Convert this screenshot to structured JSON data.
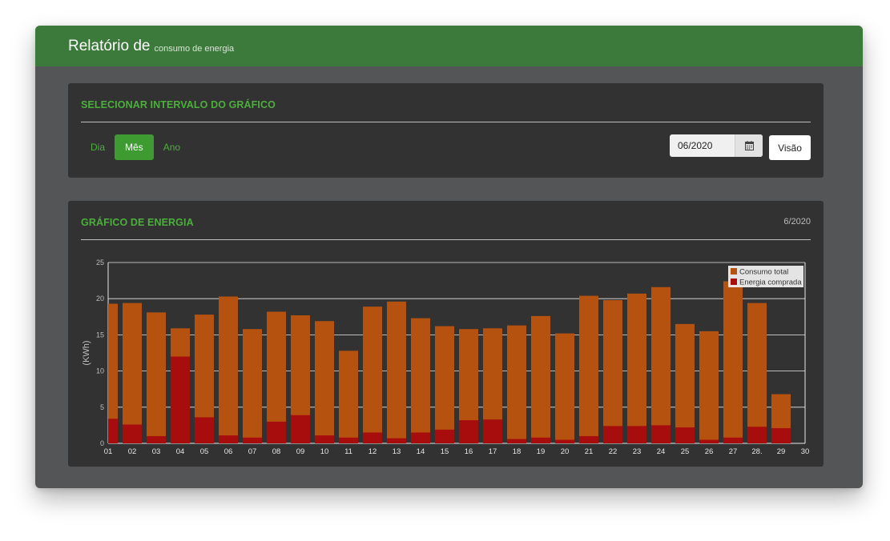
{
  "header": {
    "title": "Relatório de",
    "subtitle": "consumo de energia"
  },
  "range_panel": {
    "title": "SELECIONAR INTERVALO DO GRÁFICO",
    "tabs": [
      {
        "label": "Dia",
        "active": false
      },
      {
        "label": "Mês",
        "active": true
      },
      {
        "label": "Ano",
        "active": false
      }
    ],
    "date_value": "06/2020",
    "calendar_icon": "calendar-icon",
    "view_button": "Visão"
  },
  "chart_panel": {
    "title": "GRÁFICO DE ENERGIA",
    "period": "6/2020"
  },
  "colors": {
    "header_green": "#3b7a3a",
    "accent_green": "#4caf3c",
    "total": "#b5520f",
    "purchased": "#a70d0d"
  },
  "chart_data": {
    "type": "bar",
    "ylabel": "(KWh)",
    "xlabel": "",
    "ylim": [
      0,
      25
    ],
    "yticks": [
      "0",
      "5",
      "10",
      "15",
      "20",
      "25"
    ],
    "grid": true,
    "legend_position": "top-right",
    "categories": [
      "01",
      "02",
      "03",
      "04",
      "05",
      "06",
      "07",
      "08",
      "09",
      "10",
      "11",
      "12",
      "13",
      "14",
      "15",
      "16",
      "17",
      "18",
      "19",
      "20",
      "21",
      "22",
      "23",
      "24",
      "25",
      "26",
      "27",
      "28.",
      "29",
      "30"
    ],
    "series": [
      {
        "name": "Consumo total",
        "color": "#b5520f",
        "values": [
          19.3,
          19.4,
          18.1,
          15.9,
          17.8,
          20.3,
          15.8,
          18.2,
          17.7,
          16.9,
          12.8,
          18.9,
          19.6,
          17.3,
          16.2,
          15.8,
          15.9,
          16.3,
          17.6,
          15.2,
          20.4,
          19.8,
          20.7,
          21.6,
          16.5,
          15.5,
          22.4,
          19.4,
          6.8,
          0
        ]
      },
      {
        "name": "Energia comprada",
        "color": "#a70d0d",
        "values": [
          3.4,
          2.6,
          1.0,
          12.0,
          3.6,
          1.1,
          0.8,
          3.0,
          3.9,
          1.1,
          0.8,
          1.5,
          0.7,
          1.5,
          1.9,
          3.2,
          3.3,
          0.6,
          0.8,
          0.5,
          1.0,
          2.4,
          2.4,
          2.5,
          2.2,
          0.5,
          0.8,
          2.3,
          2.1,
          0
        ]
      }
    ]
  }
}
